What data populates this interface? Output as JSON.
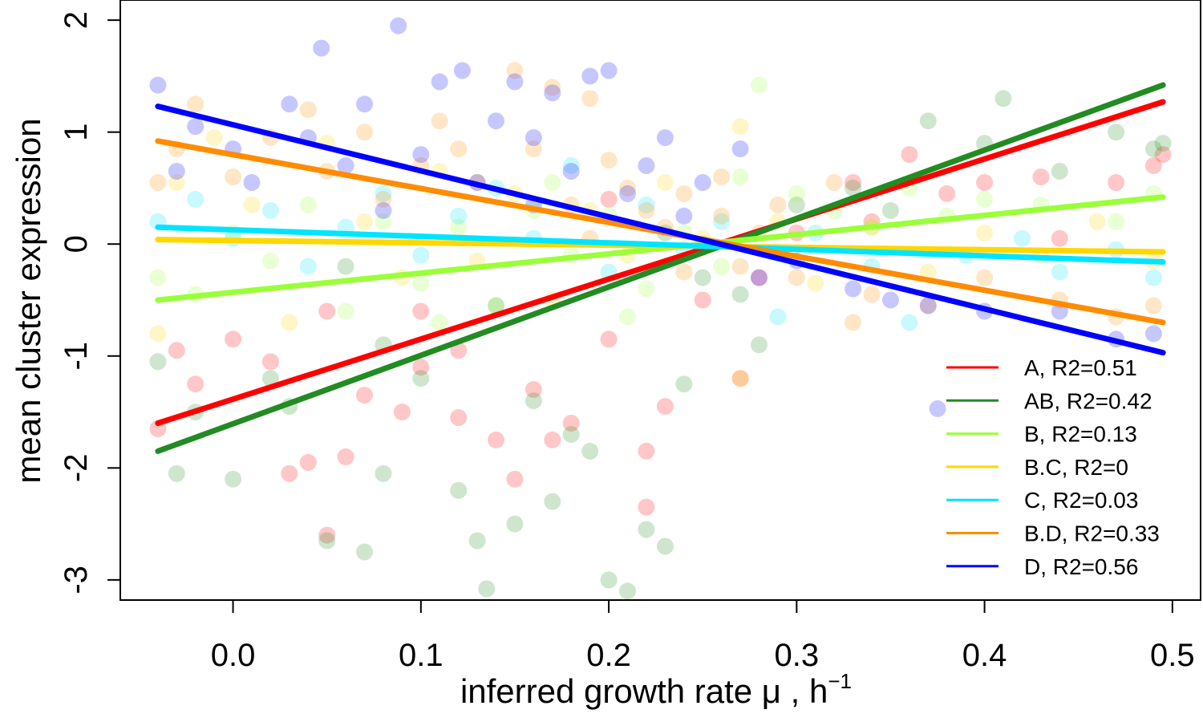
{
  "chart_data": {
    "type": "scatter",
    "xlabel": "inferred growth rate  μ , h",
    "xlabel_sup": "−1",
    "ylabel": "mean cluster expression",
    "xlim": [
      -0.06,
      0.515
    ],
    "ylim": [
      -3.18,
      2.18
    ],
    "x_ticks": [
      {
        "value": 0.0,
        "label": "0.0"
      },
      {
        "value": 0.1,
        "label": "0.1"
      },
      {
        "value": 0.2,
        "label": "0.2"
      },
      {
        "value": 0.3,
        "label": "0.3"
      },
      {
        "value": 0.4,
        "label": "0.4"
      },
      {
        "value": 0.5,
        "label": "0.5"
      }
    ],
    "y_ticks": [
      {
        "value": 2,
        "label": "2"
      },
      {
        "value": 1,
        "label": "1"
      },
      {
        "value": 0,
        "label": "0"
      },
      {
        "value": -1,
        "label": "-1"
      },
      {
        "value": -2,
        "label": "-2"
      },
      {
        "value": -3,
        "label": "-3"
      }
    ],
    "grid": false,
    "legend_position": "bottom-right",
    "series": [
      {
        "name": "A, R2=0.51",
        "color": "#ff0000",
        "fit": {
          "x": [
            -0.04,
            0.495
          ],
          "y": [
            -1.6,
            1.27
          ]
        },
        "points": [
          [
            -0.04,
            -1.65
          ],
          [
            -0.03,
            -0.95
          ],
          [
            -0.02,
            -1.25
          ],
          [
            0.0,
            -0.85
          ],
          [
            0.02,
            -1.05
          ],
          [
            0.03,
            -2.05
          ],
          [
            0.04,
            -1.95
          ],
          [
            0.05,
            -0.6
          ],
          [
            0.06,
            -1.9
          ],
          [
            0.07,
            -1.35
          ],
          [
            0.09,
            -1.5
          ],
          [
            0.1,
            -1.1
          ],
          [
            0.12,
            -1.55
          ],
          [
            0.14,
            -1.75
          ],
          [
            0.15,
            -2.1
          ],
          [
            0.16,
            -1.3
          ],
          [
            0.18,
            -1.6
          ],
          [
            0.2,
            -0.85
          ],
          [
            0.22,
            -2.35
          ],
          [
            0.23,
            -1.45
          ],
          [
            0.25,
            -0.5
          ],
          [
            0.27,
            -1.2
          ],
          [
            0.3,
            0.1
          ],
          [
            0.33,
            0.55
          ],
          [
            0.36,
            0.8
          ],
          [
            0.38,
            0.45
          ],
          [
            0.4,
            0.55
          ],
          [
            0.43,
            0.6
          ],
          [
            0.47,
            0.55
          ],
          [
            0.49,
            0.7
          ],
          [
            0.495,
            0.8
          ],
          [
            0.05,
            -2.6
          ],
          [
            0.12,
            -0.95
          ],
          [
            0.17,
            -1.75
          ],
          [
            0.22,
            -1.85
          ],
          [
            0.2,
            0.4
          ],
          [
            0.28,
            -0.3
          ],
          [
            0.34,
            0.2
          ],
          [
            0.44,
            0.05
          ],
          [
            0.1,
            -0.6
          ]
        ]
      },
      {
        "name": "AB, R2=0.42",
        "color": "#228b22",
        "fit": {
          "x": [
            -0.04,
            0.495
          ],
          "y": [
            -1.85,
            1.42
          ]
        },
        "points": [
          [
            -0.04,
            -1.05
          ],
          [
            -0.03,
            -2.05
          ],
          [
            -0.02,
            -1.5
          ],
          [
            0.0,
            -2.1
          ],
          [
            0.02,
            -1.2
          ],
          [
            0.03,
            -1.45
          ],
          [
            0.05,
            -2.65
          ],
          [
            0.07,
            -2.75
          ],
          [
            0.08,
            -2.05
          ],
          [
            0.1,
            -1.2
          ],
          [
            0.12,
            -2.2
          ],
          [
            0.13,
            -2.65
          ],
          [
            0.135,
            -3.08
          ],
          [
            0.15,
            -2.5
          ],
          [
            0.17,
            -2.3
          ],
          [
            0.18,
            -1.7
          ],
          [
            0.19,
            -1.85
          ],
          [
            0.2,
            -3.0
          ],
          [
            0.21,
            -3.1
          ],
          [
            0.22,
            -2.55
          ],
          [
            0.23,
            -2.7
          ],
          [
            0.24,
            -1.25
          ],
          [
            0.27,
            -0.45
          ],
          [
            0.3,
            0.35
          ],
          [
            0.33,
            0.5
          ],
          [
            0.37,
            1.1
          ],
          [
            0.4,
            0.9
          ],
          [
            0.41,
            1.3
          ],
          [
            0.44,
            0.65
          ],
          [
            0.47,
            1.0
          ],
          [
            0.49,
            0.85
          ],
          [
            0.495,
            0.9
          ],
          [
            0.08,
            -0.9
          ],
          [
            0.16,
            -1.4
          ],
          [
            0.25,
            -0.3
          ],
          [
            0.28,
            -0.9
          ],
          [
            0.35,
            0.3
          ],
          [
            0.06,
            -0.2
          ],
          [
            0.14,
            -0.55
          ],
          [
            0.23,
            0.1
          ]
        ]
      },
      {
        "name": "B, R2=0.13",
        "color": "#9aff3a",
        "fit": {
          "x": [
            -0.04,
            0.495
          ],
          "y": [
            -0.5,
            0.42
          ]
        },
        "points": [
          [
            -0.04,
            -0.3
          ],
          [
            -0.02,
            -0.45
          ],
          [
            0.0,
            0.1
          ],
          [
            0.02,
            -0.15
          ],
          [
            0.04,
            0.35
          ],
          [
            0.06,
            -0.6
          ],
          [
            0.08,
            0.2
          ],
          [
            0.1,
            -0.35
          ],
          [
            0.12,
            0.15
          ],
          [
            0.14,
            -0.55
          ],
          [
            0.16,
            0.3
          ],
          [
            0.18,
            -0.1
          ],
          [
            0.2,
            0.25
          ],
          [
            0.22,
            -0.4
          ],
          [
            0.24,
            0.1
          ],
          [
            0.26,
            -0.2
          ],
          [
            0.28,
            1.42
          ],
          [
            0.3,
            0.45
          ],
          [
            0.32,
            0.3
          ],
          [
            0.34,
            0.15
          ],
          [
            0.36,
            0.5
          ],
          [
            0.38,
            0.25
          ],
          [
            0.4,
            0.4
          ],
          [
            0.43,
            0.35
          ],
          [
            0.47,
            0.2
          ],
          [
            0.49,
            0.45
          ],
          [
            0.11,
            -0.7
          ],
          [
            0.17,
            0.55
          ],
          [
            0.21,
            -0.65
          ],
          [
            0.27,
            0.6
          ]
        ]
      },
      {
        "name": "B.C, R2=0",
        "color": "#ffd700",
        "fit": {
          "x": [
            -0.04,
            0.495
          ],
          "y": [
            0.04,
            -0.07
          ]
        },
        "points": [
          [
            -0.04,
            -0.8
          ],
          [
            -0.03,
            0.55
          ],
          [
            -0.01,
            0.95
          ],
          [
            0.01,
            0.35
          ],
          [
            0.03,
            -0.7
          ],
          [
            0.05,
            0.9
          ],
          [
            0.07,
            0.2
          ],
          [
            0.09,
            -0.3
          ],
          [
            0.11,
            0.65
          ],
          [
            0.13,
            -0.15
          ],
          [
            0.15,
            0.45
          ],
          [
            0.17,
            -0.5
          ],
          [
            0.19,
            0.3
          ],
          [
            0.21,
            -0.1
          ],
          [
            0.23,
            0.55
          ],
          [
            0.25,
            0.05
          ],
          [
            0.27,
            1.05
          ],
          [
            0.27,
            -1.2
          ],
          [
            0.29,
            0.2
          ],
          [
            0.31,
            -0.35
          ],
          [
            0.34,
            0.15
          ],
          [
            0.37,
            -0.25
          ],
          [
            0.4,
            0.1
          ],
          [
            0.43,
            -0.1
          ],
          [
            0.46,
            0.2
          ],
          [
            0.49,
            -0.15
          ]
        ]
      },
      {
        "name": "C, R2=0.03",
        "color": "#00e5ff",
        "fit": {
          "x": [
            -0.04,
            0.495
          ],
          "y": [
            0.15,
            -0.16
          ]
        },
        "points": [
          [
            -0.04,
            0.2
          ],
          [
            -0.02,
            0.4
          ],
          [
            0.0,
            0.05
          ],
          [
            0.02,
            0.3
          ],
          [
            0.04,
            -0.2
          ],
          [
            0.06,
            0.15
          ],
          [
            0.08,
            0.45
          ],
          [
            0.1,
            -0.1
          ],
          [
            0.12,
            0.25
          ],
          [
            0.14,
            0.5
          ],
          [
            0.16,
            0.05
          ],
          [
            0.18,
            0.7
          ],
          [
            0.2,
            -0.25
          ],
          [
            0.22,
            0.35
          ],
          [
            0.24,
            -0.05
          ],
          [
            0.26,
            0.2
          ],
          [
            0.29,
            -0.65
          ],
          [
            0.31,
            0.1
          ],
          [
            0.34,
            -0.2
          ],
          [
            0.36,
            -0.7
          ],
          [
            0.39,
            -0.1
          ],
          [
            0.42,
            0.05
          ],
          [
            0.44,
            -0.25
          ],
          [
            0.47,
            -0.05
          ],
          [
            0.49,
            -0.3
          ]
        ]
      },
      {
        "name": "B.D, R2=0.33",
        "color": "#ff8c00",
        "fit": {
          "x": [
            -0.04,
            0.495
          ],
          "y": [
            0.92,
            -0.7
          ]
        },
        "points": [
          [
            -0.04,
            0.55
          ],
          [
            -0.03,
            0.85
          ],
          [
            -0.02,
            1.25
          ],
          [
            0.0,
            0.6
          ],
          [
            0.02,
            0.95
          ],
          [
            0.04,
            1.2
          ],
          [
            0.05,
            0.65
          ],
          [
            0.07,
            1.0
          ],
          [
            0.08,
            0.4
          ],
          [
            0.1,
            0.7
          ],
          [
            0.11,
            1.1
          ],
          [
            0.13,
            0.55
          ],
          [
            0.15,
            1.55
          ],
          [
            0.16,
            0.85
          ],
          [
            0.17,
            1.4
          ],
          [
            0.18,
            0.35
          ],
          [
            0.19,
            1.3
          ],
          [
            0.2,
            0.75
          ],
          [
            0.21,
            0.5
          ],
          [
            0.22,
            0.3
          ],
          [
            0.23,
            0.15
          ],
          [
            0.24,
            0.45
          ],
          [
            0.25,
            0.0
          ],
          [
            0.26,
            0.25
          ],
          [
            0.27,
            -0.2
          ],
          [
            0.28,
            0.1
          ],
          [
            0.3,
            -0.3
          ],
          [
            0.32,
            0.55
          ],
          [
            0.34,
            -0.45
          ],
          [
            0.37,
            -0.55
          ],
          [
            0.4,
            -0.3
          ],
          [
            0.44,
            -0.5
          ],
          [
            0.47,
            -0.65
          ],
          [
            0.49,
            -0.55
          ],
          [
            0.12,
            0.85
          ],
          [
            0.19,
            0.05
          ],
          [
            0.24,
            -0.25
          ],
          [
            0.26,
            0.6
          ],
          [
            0.29,
            0.35
          ],
          [
            0.33,
            -0.7
          ]
        ]
      },
      {
        "name": "D, R2=0.56",
        "color": "#0000ff",
        "fit": {
          "x": [
            -0.04,
            0.495
          ],
          "y": [
            1.23,
            -0.97
          ]
        },
        "points": [
          [
            -0.04,
            1.42
          ],
          [
            -0.03,
            0.65
          ],
          [
            -0.02,
            1.05
          ],
          [
            0.0,
            0.85
          ],
          [
            0.01,
            0.55
          ],
          [
            0.03,
            1.25
          ],
          [
            0.04,
            0.95
          ],
          [
            0.047,
            1.75
          ],
          [
            0.06,
            0.7
          ],
          [
            0.07,
            1.25
          ],
          [
            0.088,
            1.95
          ],
          [
            0.1,
            0.8
          ],
          [
            0.11,
            1.45
          ],
          [
            0.122,
            1.55
          ],
          [
            0.13,
            0.55
          ],
          [
            0.14,
            1.1
          ],
          [
            0.15,
            1.45
          ],
          [
            0.16,
            0.95
          ],
          [
            0.17,
            1.35
          ],
          [
            0.18,
            0.65
          ],
          [
            0.19,
            1.5
          ],
          [
            0.2,
            1.55
          ],
          [
            0.21,
            0.45
          ],
          [
            0.22,
            0.7
          ],
          [
            0.23,
            0.95
          ],
          [
            0.24,
            0.25
          ],
          [
            0.25,
            0.55
          ],
          [
            0.27,
            0.85
          ],
          [
            0.28,
            -0.3
          ],
          [
            0.3,
            -0.15
          ],
          [
            0.33,
            -0.4
          ],
          [
            0.35,
            -0.5
          ],
          [
            0.37,
            -0.55
          ],
          [
            0.375,
            -1.47
          ],
          [
            0.4,
            -0.6
          ],
          [
            0.44,
            -0.6
          ],
          [
            0.47,
            -0.85
          ],
          [
            0.49,
            -0.8
          ],
          [
            0.08,
            0.3
          ],
          [
            0.16,
            0.35
          ]
        ]
      }
    ]
  }
}
